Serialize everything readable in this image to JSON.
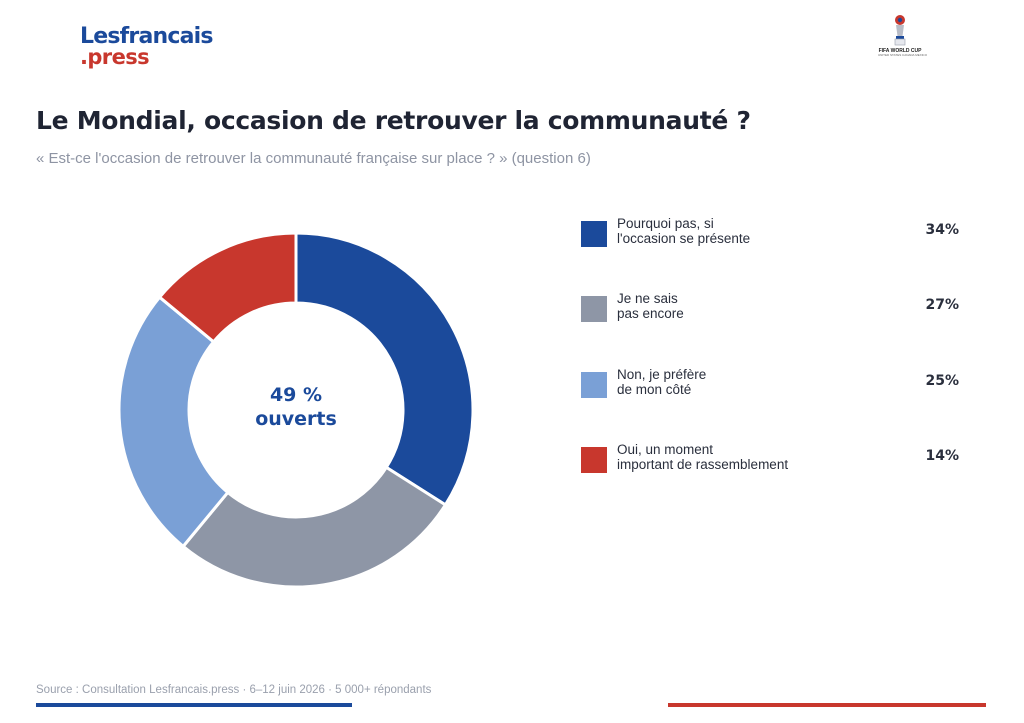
{
  "logo": {
    "line1": "Lesfrancais",
    "line2": ".press"
  },
  "badge": {
    "text": "FIFA WORLD CUP",
    "sub": "UNITED STATES CANADA MEXICO"
  },
  "title": "Le Mondial, occasion de retrouver la communauté ?",
  "subtitle": "« Est-ce l'occasion de retrouver la communauté française sur place ? » (question 6)",
  "center": {
    "line1": "49 %",
    "line2": "ouverts"
  },
  "source": "Source : Consultation Lesfrancais.press · 6–12 juin 2026 · 5 000+ répondants",
  "colors": {
    "blue": "#1b4a9b",
    "grey": "#8e96a6",
    "lightblue": "#7aa0d6",
    "red": "#c8372d"
  },
  "chart_data": {
    "type": "pie",
    "donut": true,
    "categories": [
      "Pourquoi pas, si l'occasion se présente",
      "Je ne sais pas encore",
      "Non, je préfère de mon côté",
      "Oui, un moment important de rassemblement"
    ],
    "values": [
      34,
      27,
      25,
      14
    ],
    "labels": [
      "34%",
      "27%",
      "25%",
      "14%"
    ],
    "colors": [
      "#1b4a9b",
      "#8e96a6",
      "#7aa0d6",
      "#c8372d"
    ],
    "legend_position": "right",
    "legend": [
      {
        "label_lines": [
          "Pourquoi pas, si",
          "l'occasion se présente"
        ],
        "value": "34%"
      },
      {
        "label_lines": [
          "Je ne sais",
          "pas encore"
        ],
        "value": "27%"
      },
      {
        "label_lines": [
          "Non, je préfère",
          "de mon côté"
        ],
        "value": "25%"
      },
      {
        "label_lines": [
          "Oui, un moment",
          "important de rassemblement"
        ],
        "value": "14%"
      }
    ]
  }
}
